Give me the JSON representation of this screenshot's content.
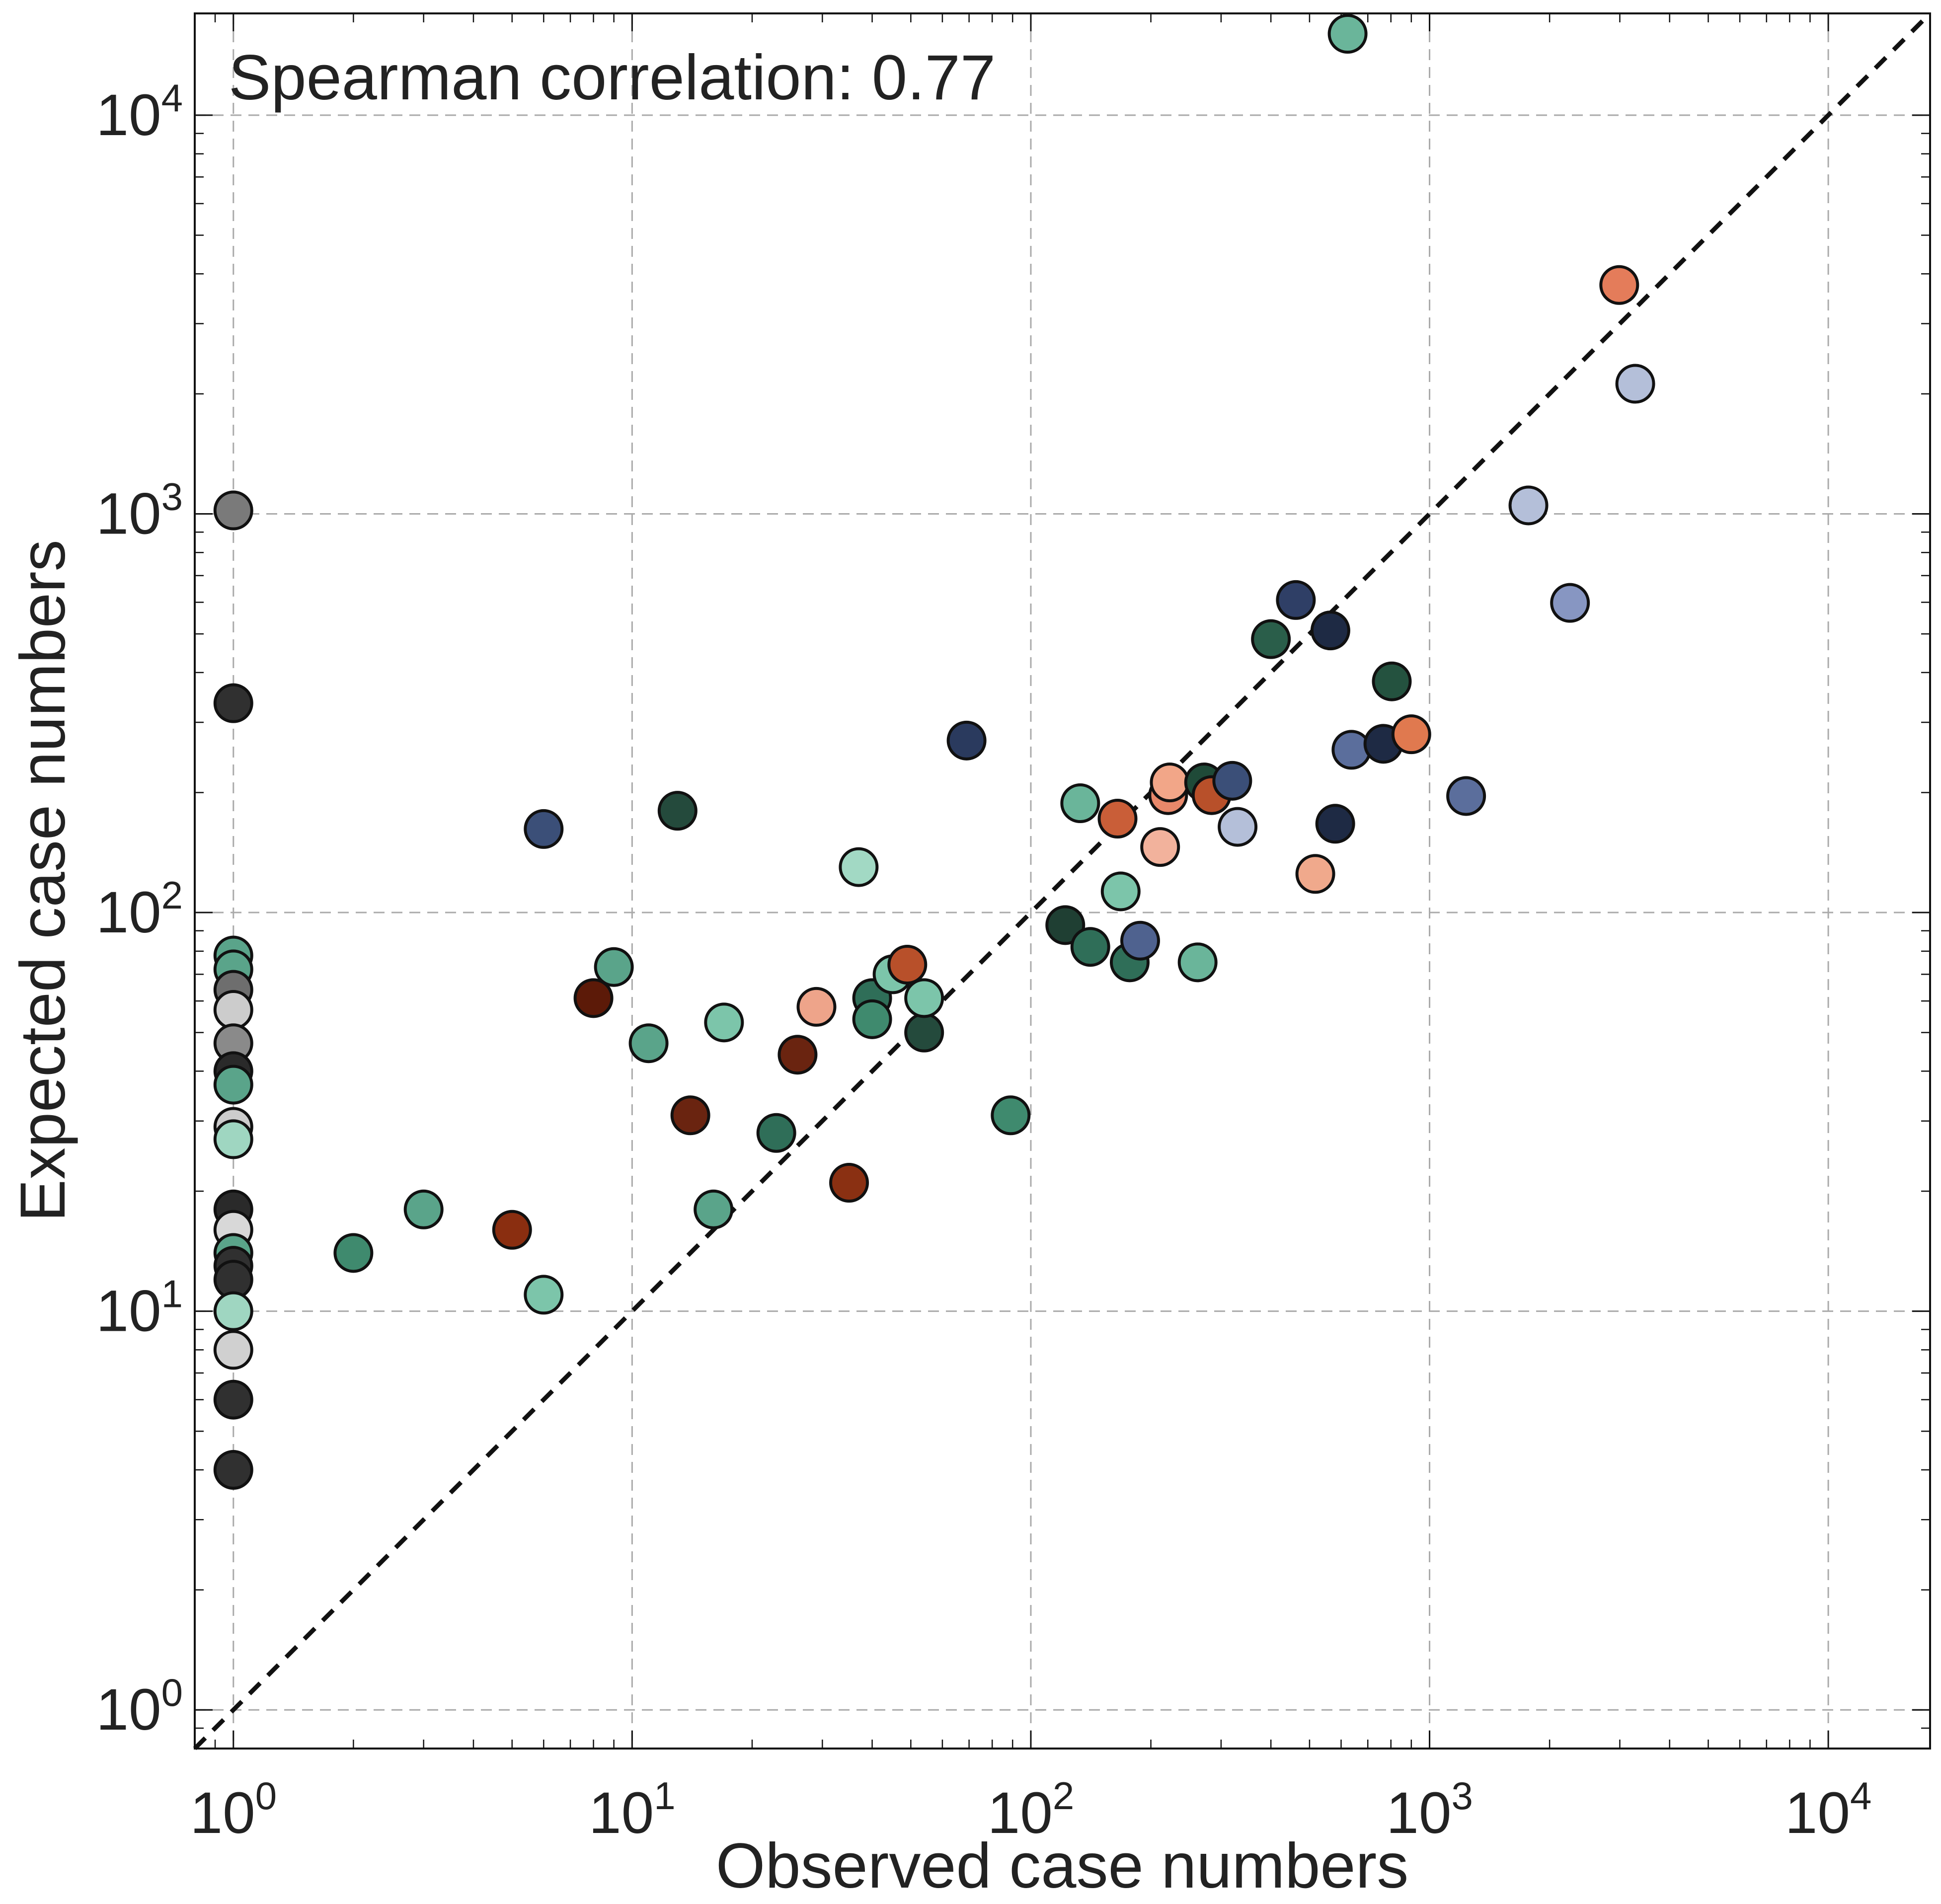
{
  "chart_data": {
    "type": "scatter",
    "xlabel": "Observed case numbers",
    "ylabel": "Expected case numbers",
    "xscale": "log",
    "yscale": "log",
    "xlim": [
      0.8,
      18000
    ],
    "ylim": [
      0.8,
      18000
    ],
    "grid": true,
    "legend": "none",
    "x_ticks": [
      {
        "base": "10",
        "exp": "0"
      },
      {
        "base": "10",
        "exp": "1"
      },
      {
        "base": "10",
        "exp": "2"
      },
      {
        "base": "10",
        "exp": "3"
      },
      {
        "base": "10",
        "exp": "4"
      }
    ],
    "y_ticks": [
      {
        "base": "10",
        "exp": "0"
      },
      {
        "base": "10",
        "exp": "1"
      },
      {
        "base": "10",
        "exp": "2"
      },
      {
        "base": "10",
        "exp": "3"
      },
      {
        "base": "10",
        "exp": "4"
      }
    ],
    "annotation": "Spearman correlation: 0.77",
    "reference_line": "y = x (dashed black)",
    "points": [
      {
        "x": 1,
        "y": 1020,
        "color": "#7a7a7a"
      },
      {
        "x": 1,
        "y": 335,
        "color": "#303030"
      },
      {
        "x": 1,
        "y": 78,
        "color": "#5aa48a"
      },
      {
        "x": 1,
        "y": 72,
        "color": "#5aa48a"
      },
      {
        "x": 1,
        "y": 64,
        "color": "#6e6e6e"
      },
      {
        "x": 1,
        "y": 57,
        "color": "#cccccc"
      },
      {
        "x": 1,
        "y": 47,
        "color": "#8a8a8a"
      },
      {
        "x": 1,
        "y": 40,
        "color": "#2a2a2a"
      },
      {
        "x": 1,
        "y": 37,
        "color": "#5aa48a"
      },
      {
        "x": 1,
        "y": 29,
        "color": "#cccccc"
      },
      {
        "x": 1,
        "y": 27,
        "color": "#9fd6c1"
      },
      {
        "x": 1,
        "y": 18,
        "color": "#2a2a2a"
      },
      {
        "x": 1,
        "y": 16,
        "color": "#d8d8d8"
      },
      {
        "x": 1,
        "y": 14,
        "color": "#5aa48a"
      },
      {
        "x": 1,
        "y": 13,
        "color": "#303030"
      },
      {
        "x": 1,
        "y": 12,
        "color": "#303030"
      },
      {
        "x": 1,
        "y": 10,
        "color": "#9fd6c1"
      },
      {
        "x": 1,
        "y": 8,
        "color": "#d0d0d0"
      },
      {
        "x": 1,
        "y": 6,
        "color": "#303030"
      },
      {
        "x": 1,
        "y": 4,
        "color": "#303030"
      },
      {
        "x": 2,
        "y": 14,
        "color": "#3f8a6e"
      },
      {
        "x": 3,
        "y": 18,
        "color": "#5aa48a"
      },
      {
        "x": 5,
        "y": 16,
        "color": "#8a2e10"
      },
      {
        "x": 6,
        "y": 162,
        "color": "#3b4f78"
      },
      {
        "x": 6,
        "y": 11,
        "color": "#7cc5aa"
      },
      {
        "x": 8,
        "y": 61,
        "color": "#5c1a08"
      },
      {
        "x": 9,
        "y": 73,
        "color": "#5aa48a"
      },
      {
        "x": 11,
        "y": 47,
        "color": "#5aa48a"
      },
      {
        "x": 13,
        "y": 180,
        "color": "#244a3c"
      },
      {
        "x": 14,
        "y": 31,
        "color": "#6a2410"
      },
      {
        "x": 16,
        "y": 18,
        "color": "#5aa48a"
      },
      {
        "x": 17,
        "y": 53,
        "color": "#7cc5aa"
      },
      {
        "x": 23,
        "y": 28,
        "color": "#2f6e58"
      },
      {
        "x": 26,
        "y": 44,
        "color": "#6a2410"
      },
      {
        "x": 29,
        "y": 58,
        "color": "#eea48a"
      },
      {
        "x": 35,
        "y": 21,
        "color": "#8a3012"
      },
      {
        "x": 37,
        "y": 130,
        "color": "#a2d9c4"
      },
      {
        "x": 40,
        "y": 61,
        "color": "#2f6e58"
      },
      {
        "x": 40,
        "y": 54,
        "color": "#3f8a6e"
      },
      {
        "x": 45,
        "y": 70,
        "color": "#7cc5aa"
      },
      {
        "x": 49,
        "y": 74,
        "color": "#b8502a"
      },
      {
        "x": 54,
        "y": 50,
        "color": "#244a3c"
      },
      {
        "x": 54,
        "y": 61,
        "color": "#7cc5aa"
      },
      {
        "x": 69,
        "y": 270,
        "color": "#2a3a5e"
      },
      {
        "x": 89,
        "y": 31,
        "color": "#3f8a6e"
      },
      {
        "x": 122,
        "y": 93,
        "color": "#1f3f33"
      },
      {
        "x": 133,
        "y": 188,
        "color": "#6ab59a"
      },
      {
        "x": 141,
        "y": 82,
        "color": "#2f6e58"
      },
      {
        "x": 165,
        "y": 172,
        "color": "#c95e38"
      },
      {
        "x": 168,
        "y": 113,
        "color": "#7cc5aa"
      },
      {
        "x": 177,
        "y": 75,
        "color": "#2f6e58"
      },
      {
        "x": 188,
        "y": 85,
        "color": "#4f628f"
      },
      {
        "x": 211,
        "y": 146,
        "color": "#f2b29c"
      },
      {
        "x": 221,
        "y": 197,
        "color": "#e8886a"
      },
      {
        "x": 223,
        "y": 212,
        "color": "#f2a688"
      },
      {
        "x": 262,
        "y": 75,
        "color": "#6ab59a"
      },
      {
        "x": 272,
        "y": 212,
        "color": "#1f4a38"
      },
      {
        "x": 284,
        "y": 197,
        "color": "#b8502a"
      },
      {
        "x": 320,
        "y": 214,
        "color": "#3b4f78"
      },
      {
        "x": 330,
        "y": 164,
        "color": "#b4bfd9"
      },
      {
        "x": 400,
        "y": 485,
        "color": "#2a5e4a"
      },
      {
        "x": 462,
        "y": 608,
        "color": "#2f3f66"
      },
      {
        "x": 517,
        "y": 125,
        "color": "#f0a98c"
      },
      {
        "x": 564,
        "y": 510,
        "color": "#1e2a44"
      },
      {
        "x": 580,
        "y": 167,
        "color": "#1e2a44"
      },
      {
        "x": 623,
        "y": 16000,
        "color": "#6ab59a"
      },
      {
        "x": 637,
        "y": 256,
        "color": "#5b6e9c"
      },
      {
        "x": 766,
        "y": 265,
        "color": "#1e2a44"
      },
      {
        "x": 804,
        "y": 380,
        "color": "#24523f"
      },
      {
        "x": 900,
        "y": 280,
        "color": "#e0794f"
      },
      {
        "x": 1235,
        "y": 196,
        "color": "#5b6e9c"
      },
      {
        "x": 1770,
        "y": 1050,
        "color": "#b4bfd9"
      },
      {
        "x": 2250,
        "y": 598,
        "color": "#8796c2"
      },
      {
        "x": 2990,
        "y": 3750,
        "color": "#e47c5a"
      },
      {
        "x": 3280,
        "y": 2120,
        "color": "#b4bfd9"
      }
    ]
  }
}
